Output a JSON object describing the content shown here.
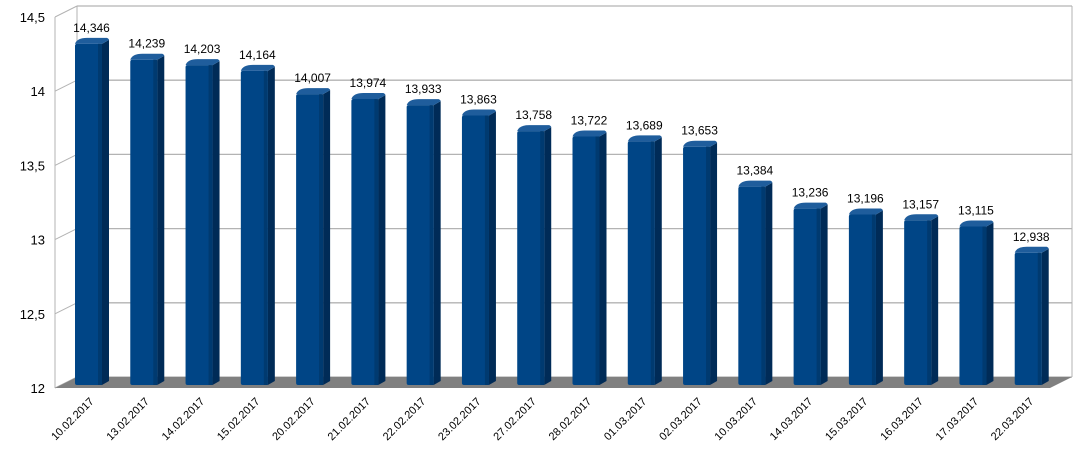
{
  "chart_data": {
    "type": "bar",
    "title": "",
    "xlabel": "",
    "ylabel": "",
    "ylim": [
      12,
      14.5
    ],
    "yticks": [
      "12",
      "12,5",
      "13",
      "13,5",
      "14",
      "14,5"
    ],
    "ytick_values": [
      12,
      12.5,
      13,
      13.5,
      14,
      14.5
    ],
    "grid": true,
    "legend": "none",
    "categories": [
      "10.02.2017",
      "13.02.2017",
      "14.02.2017",
      "15.02.2017",
      "20.02.2017",
      "21.02.2017",
      "22.02.2017",
      "23.02.2017",
      "27.02.2017",
      "28.02.2017",
      "01.03.2017",
      "02.03.2017",
      "10.03.2017",
      "14.03.2017",
      "15.03.2017",
      "16.03.2017",
      "17.03.2017",
      "22.03.2017"
    ],
    "values": [
      14.346,
      14.239,
      14.203,
      14.164,
      14.007,
      13.974,
      13.933,
      13.863,
      13.758,
      13.722,
      13.689,
      13.653,
      13.384,
      13.236,
      13.196,
      13.157,
      13.115,
      12.938
    ],
    "value_labels": [
      "14,346",
      "14,239",
      "14,203",
      "14,164",
      "14,007",
      "13,974",
      "13,933",
      "13,863",
      "13,758",
      "13,722",
      "13,689",
      "13,653",
      "13,384",
      "13,236",
      "13,196",
      "13,157",
      "13,115",
      "12,938"
    ],
    "colors": {
      "bar_front": "#004586",
      "bar_side": "#002b57",
      "floor": "#808080",
      "grid": "#b3b3b3"
    }
  }
}
